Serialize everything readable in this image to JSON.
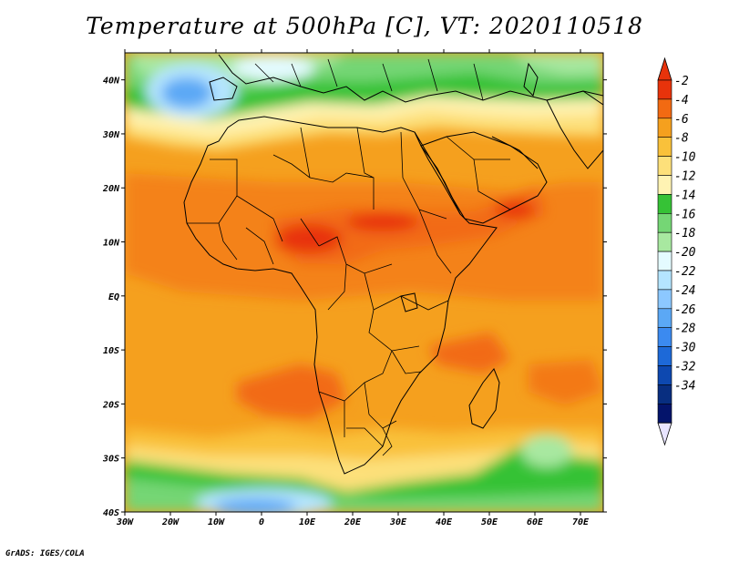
{
  "title": "Temperature at 500hPa [C], VT: 2020110518",
  "footer": "GrADS: IGES/COLA",
  "map": {
    "lon_labels": [
      "30W",
      "20W",
      "10W",
      "0",
      "10E",
      "20E",
      "30E",
      "40E",
      "50E",
      "60E",
      "70E"
    ],
    "lat_labels": [
      "40N",
      "30N",
      "20N",
      "10N",
      "EQ",
      "10S",
      "20S",
      "30S",
      "40S"
    ],
    "lon_range": [
      -30,
      75
    ],
    "lat_range": [
      -40,
      45
    ]
  },
  "colorbar": {
    "labels": [
      "-2",
      "-4",
      "-6",
      "-8",
      "-10",
      "-12",
      "-14",
      "-16",
      "-18",
      "-20",
      "-22",
      "-24",
      "-26",
      "-28",
      "-30",
      "-32",
      "-34"
    ],
    "colors": [
      "#e8330b",
      "#f26a12",
      "#f5a01e",
      "#f9c13a",
      "#fde07a",
      "#fff3b3",
      "#36c236",
      "#75d675",
      "#a8e8a0",
      "#e4fbff",
      "#b5e5ff",
      "#8cc8ff",
      "#5ba8f5",
      "#3b8af0",
      "#1d69d8",
      "#0d48b0",
      "#082e80",
      "#04146b",
      "#e8e4ff"
    ],
    "top_arrow_color": "#e8330b",
    "bottom_arrow_color": "#e8e4ff"
  }
}
